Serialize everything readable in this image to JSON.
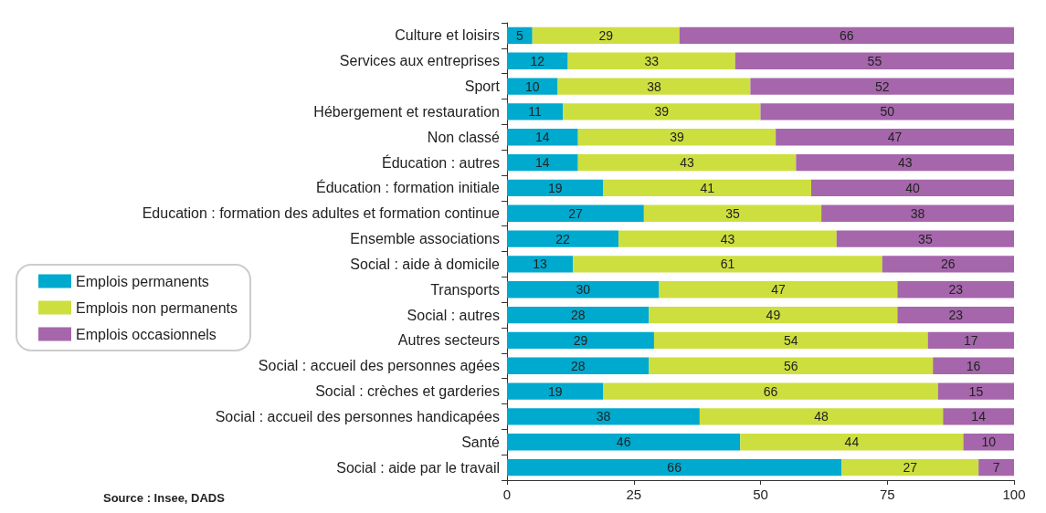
{
  "chart_data": {
    "type": "bar",
    "orientation": "horizontal",
    "stacked": true,
    "data_labels": true,
    "grid": false,
    "legend": "left",
    "categories": [
      "Culture et loisirs",
      "Services aux entreprises",
      "Sport",
      "Hébergement et restauration",
      "Non classé",
      "Éducation : autres",
      "Éducation : formation initiale",
      "Education : formation des adultes et formation continue",
      "Ensemble associations",
      "Social : aide à domicile",
      "Transports",
      "Social : autres",
      "Autres secteurs",
      "Social : accueil des personnes agées",
      "Social : crèches et garderies",
      "Social : accueil des personnes handicapées",
      "Santé",
      "Social : aide par le travail"
    ],
    "series": [
      {
        "name": "Emplois permanents",
        "color": "#00a9ce",
        "values": [
          5,
          12,
          10,
          11,
          14,
          14,
          19,
          27,
          22,
          13,
          30,
          28,
          29,
          28,
          19,
          38,
          46,
          66
        ]
      },
      {
        "name": "Emplois non permanents",
        "color": "#cddf3e",
        "values": [
          29,
          33,
          38,
          39,
          39,
          43,
          41,
          35,
          43,
          61,
          47,
          49,
          54,
          56,
          66,
          48,
          44,
          27
        ]
      },
      {
        "name": "Emplois occasionnels",
        "color": "#a566ab",
        "values": [
          66,
          55,
          52,
          50,
          47,
          43,
          40,
          38,
          35,
          26,
          23,
          23,
          17,
          16,
          15,
          14,
          10,
          7
        ]
      }
    ],
    "xlim": [
      0,
      100
    ],
    "xticks": [
      0,
      25,
      50,
      75,
      100
    ],
    "annotations": [
      "Source : Insee, DADS"
    ]
  }
}
